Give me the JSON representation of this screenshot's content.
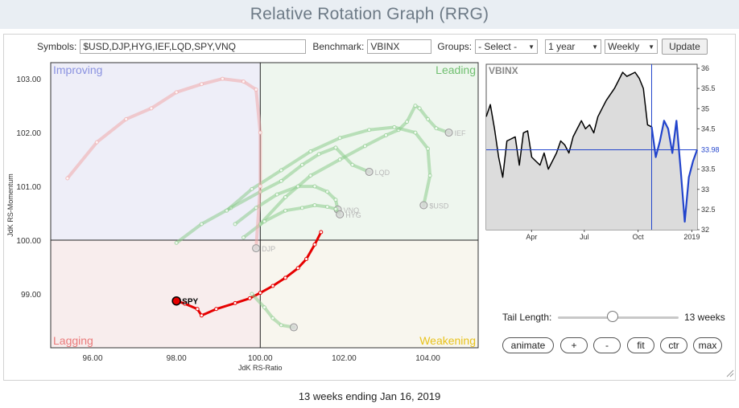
{
  "page": {
    "title": "Relative Rotation Graph (RRG)"
  },
  "toolbar": {
    "symbols_label": "Symbols:",
    "symbols_value": "$USD,DJP,HYG,IEF,LQD,SPY,VNQ",
    "benchmark_label": "Benchmark:",
    "benchmark_value": "VBINX",
    "groups_label": "Groups:",
    "groups_value": "- Select -",
    "period_value": "1 year",
    "frequency_value": "Weekly",
    "update_label": "Update"
  },
  "chart_data": [
    {
      "type": "scatter",
      "xlabel": "JdK RS-Ratio",
      "ylabel": "JdK RS-Momentum",
      "xlim": [
        95.0,
        105.2
      ],
      "ylim": [
        98.0,
        103.3
      ],
      "x_ticks": [
        96.0,
        98.0,
        100.0,
        102.0,
        104.0
      ],
      "x_tick_labels": [
        "96.00",
        "98.00",
        "100.00",
        "102.00",
        "104.00"
      ],
      "y_ticks": [
        99.0,
        100.0,
        101.0,
        102.0,
        103.0
      ],
      "y_tick_labels": [
        "99.00",
        "100.00",
        "101.00",
        "102.00",
        "103.00"
      ],
      "quadrants": [
        {
          "name": "Improving",
          "color": "#8a92e0",
          "bg": "#eeeef8",
          "position": "top-left"
        },
        {
          "name": "Leading",
          "color": "#6fbf6f",
          "bg": "#eef6ee",
          "position": "top-right"
        },
        {
          "name": "Lagging",
          "color": "#ea7a7a",
          "bg": "#f8eded",
          "position": "bottom-left"
        },
        {
          "name": "Weakening",
          "color": "#e8c21c",
          "bg": "#f8f6ee",
          "position": "bottom-right"
        }
      ],
      "series": [
        {
          "name": "SPY",
          "color": "#e60000",
          "highlight": true,
          "x": [
            101.45,
            101.3,
            101.1,
            100.9,
            100.6,
            100.3,
            100.0,
            99.75,
            99.4,
            98.95,
            98.6,
            98.5,
            98.2,
            98.0
          ],
          "y": [
            100.15,
            99.92,
            99.65,
            99.48,
            99.3,
            99.15,
            99.02,
            98.92,
            98.83,
            98.72,
            98.6,
            98.72,
            98.82,
            98.87
          ]
        },
        {
          "name": "IEF",
          "color": "#8ccc8c",
          "highlight": false,
          "x": [
            100.0,
            100.6,
            101.2,
            101.9,
            102.5,
            103.0,
            103.3,
            103.5,
            103.7,
            103.8,
            104.0,
            104.2,
            104.5
          ],
          "y": [
            100.3,
            100.8,
            101.2,
            101.5,
            101.75,
            101.95,
            102.05,
            102.2,
            102.5,
            102.45,
            102.25,
            102.08,
            102.0
          ]
        },
        {
          "name": "LQD",
          "color": "#8ccc8c",
          "highlight": false,
          "x": [
            98.0,
            98.6,
            99.3,
            100.0,
            100.5,
            101.0,
            101.4,
            101.8,
            102.2,
            102.6
          ],
          "y": [
            99.95,
            100.3,
            100.6,
            100.9,
            101.1,
            101.4,
            101.6,
            101.72,
            101.4,
            101.27
          ]
        },
        {
          "name": "$USD",
          "color": "#8ccc8c",
          "highlight": false,
          "x": [
            99.2,
            99.8,
            100.5,
            101.2,
            101.9,
            102.6,
            103.2,
            103.7,
            104.0,
            104.05,
            103.9
          ],
          "y": [
            100.55,
            100.95,
            101.3,
            101.65,
            101.9,
            102.05,
            102.1,
            102.0,
            101.7,
            101.2,
            100.65
          ]
        },
        {
          "name": "VNQ",
          "color": "#8ccc8c",
          "highlight": false,
          "x": [
            99.4,
            99.9,
            100.4,
            100.9,
            101.3,
            101.6,
            101.8,
            101.85
          ],
          "y": [
            100.3,
            100.6,
            100.85,
            101.0,
            101.0,
            100.9,
            100.75,
            100.57
          ]
        },
        {
          "name": "HYG",
          "color": "#8ccc8c",
          "highlight": false,
          "x": [
            99.6,
            100.1,
            100.6,
            101.0,
            101.3,
            101.6,
            101.8,
            101.9
          ],
          "y": [
            100.05,
            100.35,
            100.55,
            100.6,
            100.65,
            100.62,
            100.58,
            100.48
          ]
        },
        {
          "name": "DJP",
          "color": "#f0aaaa",
          "highlight": false,
          "x": [
            95.4,
            96.1,
            96.8,
            97.4,
            98.0,
            98.6,
            99.1,
            99.6,
            99.9,
            100.0,
            100.0,
            99.9
          ],
          "y": [
            101.15,
            101.82,
            102.25,
            102.45,
            102.75,
            102.9,
            103.0,
            102.95,
            102.8,
            102.0,
            101.0,
            99.85
          ]
        },
        {
          "name": "",
          "color": "#8ccc8c",
          "highlight": false,
          "x": [
            99.8,
            100.1,
            100.3,
            100.5,
            100.8
          ],
          "y": [
            99.0,
            98.75,
            98.55,
            98.42,
            98.38
          ]
        }
      ]
    },
    {
      "type": "line",
      "title": "VBINX",
      "x_tick_labels": [
        "Apr",
        "Jul",
        "Oct",
        "2019"
      ],
      "y_ticks": [
        32,
        32.5,
        33,
        33.5,
        34,
        34.5,
        35,
        35.5,
        36
      ],
      "y_tick_labels": [
        "32",
        "32.5",
        "33",
        "33.5",
        "34",
        "34.5",
        "35",
        "35.5",
        "36"
      ],
      "ylim": [
        32,
        36.1
      ],
      "last_value": "33.98",
      "series": [
        {
          "name": "",
          "color": "#000000",
          "y": [
            34.8,
            35.1,
            34.5,
            33.8,
            33.3,
            34.2,
            34.25,
            34.3,
            33.6,
            34.4,
            34.45,
            33.8,
            33.7,
            33.6,
            33.9,
            33.5,
            33.7,
            33.9,
            34.2,
            34.1,
            33.9,
            34.3,
            34.5,
            34.7,
            34.5,
            34.6,
            34.4,
            34.8,
            35.0,
            35.2,
            35.35,
            35.5,
            35.7,
            35.9,
            35.8,
            35.85,
            35.9,
            35.75,
            35.5,
            34.6,
            34.55
          ]
        },
        {
          "name": "",
          "color": "#2244cc",
          "y": [
            34.55,
            33.8,
            34.2,
            34.7,
            34.5,
            33.9,
            34.7,
            33.5,
            32.2,
            33.3,
            33.7,
            33.98
          ]
        }
      ]
    }
  ],
  "controls": {
    "tail_length_label": "Tail Length:",
    "tail_length_value": "13 weeks",
    "tail_length_fraction": 0.45,
    "buttons": [
      "animate",
      "+",
      "-",
      "fit",
      "ctr",
      "max"
    ]
  },
  "footer": {
    "caption": "13 weeks ending Jan 16, 2019"
  },
  "colors": {
    "title_bg": "#e9eef3",
    "title_text": "#6d7a86",
    "spy": "#e60000",
    "tail_green": "#8ccc8c",
    "vbinx_blue": "#2244cc"
  }
}
